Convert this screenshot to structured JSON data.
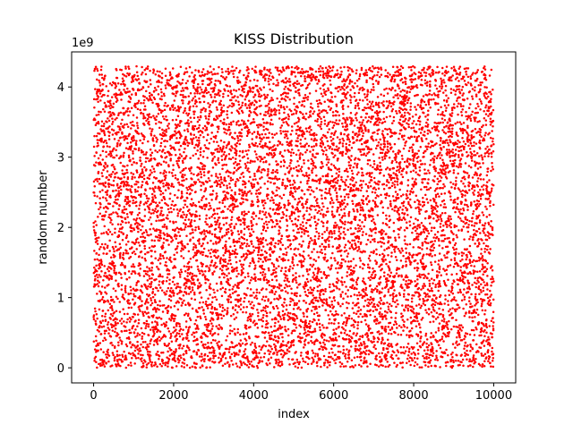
{
  "chart_data": {
    "type": "scatter",
    "title": "KISS Distribution",
    "xlabel": "index",
    "ylabel": "random number",
    "y_offset_label": "1e9",
    "xlim": [
      -550,
      10550
    ],
    "ylim": [
      -0.215,
      4.5
    ],
    "x_ticks": [
      0,
      2000,
      4000,
      6000,
      8000,
      10000
    ],
    "x_tick_labels": [
      "0",
      "2000",
      "4000",
      "6000",
      "8000",
      "10000"
    ],
    "y_ticks": [
      0,
      1,
      2,
      3,
      4
    ],
    "y_tick_labels": [
      "0",
      "1",
      "2",
      "3",
      "4"
    ],
    "grid": false,
    "legend": "none",
    "series": [
      {
        "color": "#ff0000",
        "marker": "point",
        "count": 10000,
        "x_range": [
          0,
          9999
        ],
        "y_range": [
          0,
          4.294967295
        ],
        "distribution": "uniform"
      }
    ]
  }
}
